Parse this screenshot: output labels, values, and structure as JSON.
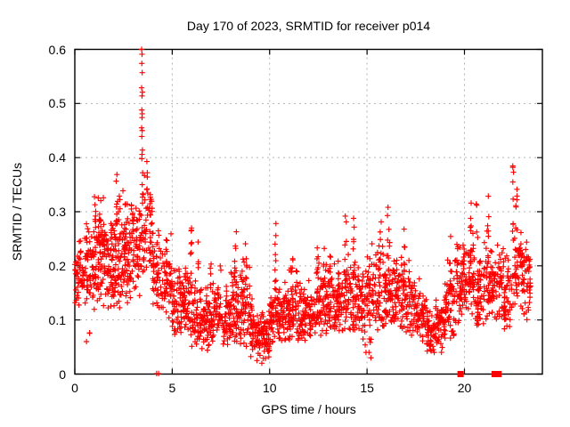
{
  "chart_data": {
    "type": "scatter",
    "title": "Day 170 of 2023, SRMTID for receiver p014",
    "xlabel": "GPS time / hours",
    "ylabel": "SRMTID / TECUs",
    "xlim": [
      0,
      24
    ],
    "ylim": [
      0,
      0.6
    ],
    "grid": true,
    "legend": "none",
    "xticks": [
      {
        "v": 0,
        "label": "0"
      },
      {
        "v": 5,
        "label": "5"
      },
      {
        "v": 10,
        "label": "10"
      },
      {
        "v": 15,
        "label": "15"
      },
      {
        "v": 20,
        "label": "20"
      }
    ],
    "yticks": [
      {
        "v": 0.0,
        "label": "0"
      },
      {
        "v": 0.1,
        "label": "0.1"
      },
      {
        "v": 0.2,
        "label": "0.2"
      },
      {
        "v": 0.3,
        "label": "0.3"
      },
      {
        "v": 0.4,
        "label": "0.4"
      },
      {
        "v": 0.5,
        "label": "0.5"
      },
      {
        "v": 0.6,
        "label": "0.6"
      }
    ],
    "marker": {
      "shape": "plus",
      "color": "#ff0000",
      "size": 7
    },
    "colors": {
      "grid": "#b3b3b3",
      "axis": "#000000",
      "background": "#ffffff"
    },
    "series_name": "SRMTID for receiver p014",
    "band_bins": [
      [
        0.0,
        0.5,
        50,
        0.09,
        0.25,
        0.18
      ],
      [
        0.5,
        0.5,
        60,
        0.07,
        0.3,
        0.19
      ],
      [
        1.0,
        0.5,
        70,
        0.1,
        0.34,
        0.22
      ],
      [
        1.5,
        0.5,
        70,
        0.1,
        0.31,
        0.2
      ],
      [
        2.0,
        0.5,
        70,
        0.1,
        0.37,
        0.22
      ],
      [
        2.5,
        0.5,
        65,
        0.12,
        0.33,
        0.22
      ],
      [
        3.0,
        0.5,
        55,
        0.14,
        0.34,
        0.24
      ],
      [
        3.5,
        0.5,
        45,
        0.18,
        0.4,
        0.27
      ],
      [
        4.0,
        0.5,
        55,
        0.12,
        0.3,
        0.2
      ],
      [
        4.5,
        0.5,
        55,
        0.1,
        0.26,
        0.17
      ],
      [
        5.0,
        0.5,
        55,
        0.07,
        0.22,
        0.13
      ],
      [
        5.5,
        0.5,
        55,
        0.07,
        0.24,
        0.14
      ],
      [
        6.0,
        0.5,
        55,
        0.05,
        0.2,
        0.11
      ],
      [
        6.5,
        0.5,
        55,
        0.04,
        0.18,
        0.1
      ],
      [
        7.0,
        0.5,
        55,
        0.05,
        0.2,
        0.11
      ],
      [
        7.5,
        0.5,
        50,
        0.05,
        0.18,
        0.1
      ],
      [
        8.0,
        0.5,
        55,
        0.06,
        0.22,
        0.12
      ],
      [
        8.5,
        0.5,
        55,
        0.05,
        0.22,
        0.12
      ],
      [
        9.0,
        0.5,
        60,
        0.03,
        0.15,
        0.08
      ],
      [
        9.5,
        0.5,
        60,
        0.02,
        0.14,
        0.07
      ],
      [
        10.0,
        0.5,
        60,
        0.05,
        0.2,
        0.11
      ],
      [
        10.5,
        0.5,
        55,
        0.06,
        0.19,
        0.11
      ],
      [
        11.0,
        0.5,
        55,
        0.06,
        0.21,
        0.12
      ],
      [
        11.5,
        0.5,
        55,
        0.06,
        0.19,
        0.11
      ],
      [
        12.0,
        0.5,
        55,
        0.07,
        0.21,
        0.12
      ],
      [
        12.5,
        0.5,
        55,
        0.07,
        0.22,
        0.13
      ],
      [
        13.0,
        0.5,
        55,
        0.08,
        0.23,
        0.13
      ],
      [
        13.5,
        0.5,
        55,
        0.08,
        0.25,
        0.14
      ],
      [
        14.0,
        0.5,
        55,
        0.08,
        0.25,
        0.14
      ],
      [
        14.5,
        0.5,
        50,
        0.04,
        0.22,
        0.13
      ],
      [
        15.0,
        0.5,
        55,
        0.05,
        0.25,
        0.14
      ],
      [
        15.5,
        0.5,
        55,
        0.08,
        0.28,
        0.15
      ],
      [
        16.0,
        0.5,
        55,
        0.09,
        0.27,
        0.16
      ],
      [
        16.5,
        0.5,
        55,
        0.08,
        0.25,
        0.15
      ],
      [
        17.0,
        0.5,
        50,
        0.07,
        0.22,
        0.13
      ],
      [
        17.5,
        0.5,
        50,
        0.06,
        0.18,
        0.11
      ],
      [
        18.0,
        0.5,
        55,
        0.04,
        0.15,
        0.08
      ],
      [
        18.5,
        0.5,
        55,
        0.04,
        0.17,
        0.09
      ],
      [
        19.0,
        0.5,
        55,
        0.06,
        0.24,
        0.13
      ],
      [
        19.5,
        0.5,
        55,
        0.09,
        0.27,
        0.16
      ],
      [
        20.0,
        0.5,
        55,
        0.1,
        0.28,
        0.17
      ],
      [
        20.5,
        0.5,
        50,
        0.09,
        0.26,
        0.15
      ],
      [
        21.0,
        0.5,
        55,
        0.1,
        0.29,
        0.17
      ],
      [
        21.5,
        0.5,
        50,
        0.1,
        0.26,
        0.16
      ],
      [
        22.0,
        0.5,
        50,
        0.08,
        0.24,
        0.14
      ],
      [
        22.5,
        0.5,
        50,
        0.12,
        0.3,
        0.19
      ],
      [
        23.0,
        0.4,
        40,
        0.1,
        0.28,
        0.17
      ]
    ],
    "spike_columns": [
      [
        1.05,
        7,
        0.26,
        0.34
      ],
      [
        1.3,
        5,
        0.24,
        0.31
      ],
      [
        2.15,
        7,
        0.28,
        0.37
      ],
      [
        2.6,
        5,
        0.26,
        0.33
      ],
      [
        2.95,
        6,
        0.25,
        0.32
      ],
      [
        3.7,
        6,
        0.28,
        0.4
      ],
      [
        3.9,
        5,
        0.25,
        0.33
      ],
      [
        5.95,
        7,
        0.17,
        0.27
      ],
      [
        6.35,
        4,
        0.18,
        0.25
      ],
      [
        7.0,
        5,
        0.14,
        0.22
      ],
      [
        8.25,
        8,
        0.16,
        0.3
      ],
      [
        8.8,
        7,
        0.15,
        0.27
      ],
      [
        10.3,
        8,
        0.15,
        0.28
      ],
      [
        11.15,
        5,
        0.15,
        0.23
      ],
      [
        12.45,
        5,
        0.15,
        0.24
      ],
      [
        12.8,
        5,
        0.16,
        0.26
      ],
      [
        13.1,
        5,
        0.16,
        0.26
      ],
      [
        13.9,
        6,
        0.17,
        0.3
      ],
      [
        14.3,
        6,
        0.17,
        0.3
      ],
      [
        15.7,
        6,
        0.18,
        0.32
      ],
      [
        16.1,
        6,
        0.17,
        0.31
      ],
      [
        16.9,
        7,
        0.16,
        0.3
      ],
      [
        19.3,
        6,
        0.15,
        0.28
      ],
      [
        19.65,
        6,
        0.17,
        0.3
      ],
      [
        20.3,
        7,
        0.18,
        0.32
      ],
      [
        20.65,
        6,
        0.16,
        0.33
      ],
      [
        21.2,
        7,
        0.18,
        0.33
      ],
      [
        22.5,
        9,
        0.24,
        0.41
      ],
      [
        22.65,
        8,
        0.18,
        0.35
      ],
      [
        23.3,
        5,
        0.12,
        0.2
      ]
    ],
    "peak_points": [
      [
        3.43,
        0.6
      ],
      [
        3.45,
        0.591
      ],
      [
        3.44,
        0.574
      ],
      [
        3.46,
        0.557
      ],
      [
        3.43,
        0.529
      ],
      [
        3.47,
        0.521
      ],
      [
        3.45,
        0.514
      ],
      [
        3.44,
        0.488
      ],
      [
        3.46,
        0.481
      ],
      [
        3.45,
        0.474
      ],
      [
        3.43,
        0.455
      ],
      [
        3.46,
        0.45
      ],
      [
        3.44,
        0.439
      ],
      [
        3.47,
        0.414
      ],
      [
        3.45,
        0.406
      ],
      [
        3.44,
        0.398
      ],
      [
        3.48,
        0.372
      ],
      [
        3.46,
        0.35
      ],
      [
        3.48,
        0.333
      ]
    ],
    "low_points": [
      [
        0.6,
        0.06
      ],
      [
        9.35,
        0.025
      ],
      [
        9.6,
        0.02
      ],
      [
        15.1,
        0.04
      ],
      [
        15.2,
        0.03
      ],
      [
        18.25,
        0.045
      ]
    ],
    "zero_plus_marks": [
      4.2,
      4.3
    ],
    "zero_square_marks": [
      19.8,
      21.55,
      21.75
    ],
    "seed": 20230170
  }
}
